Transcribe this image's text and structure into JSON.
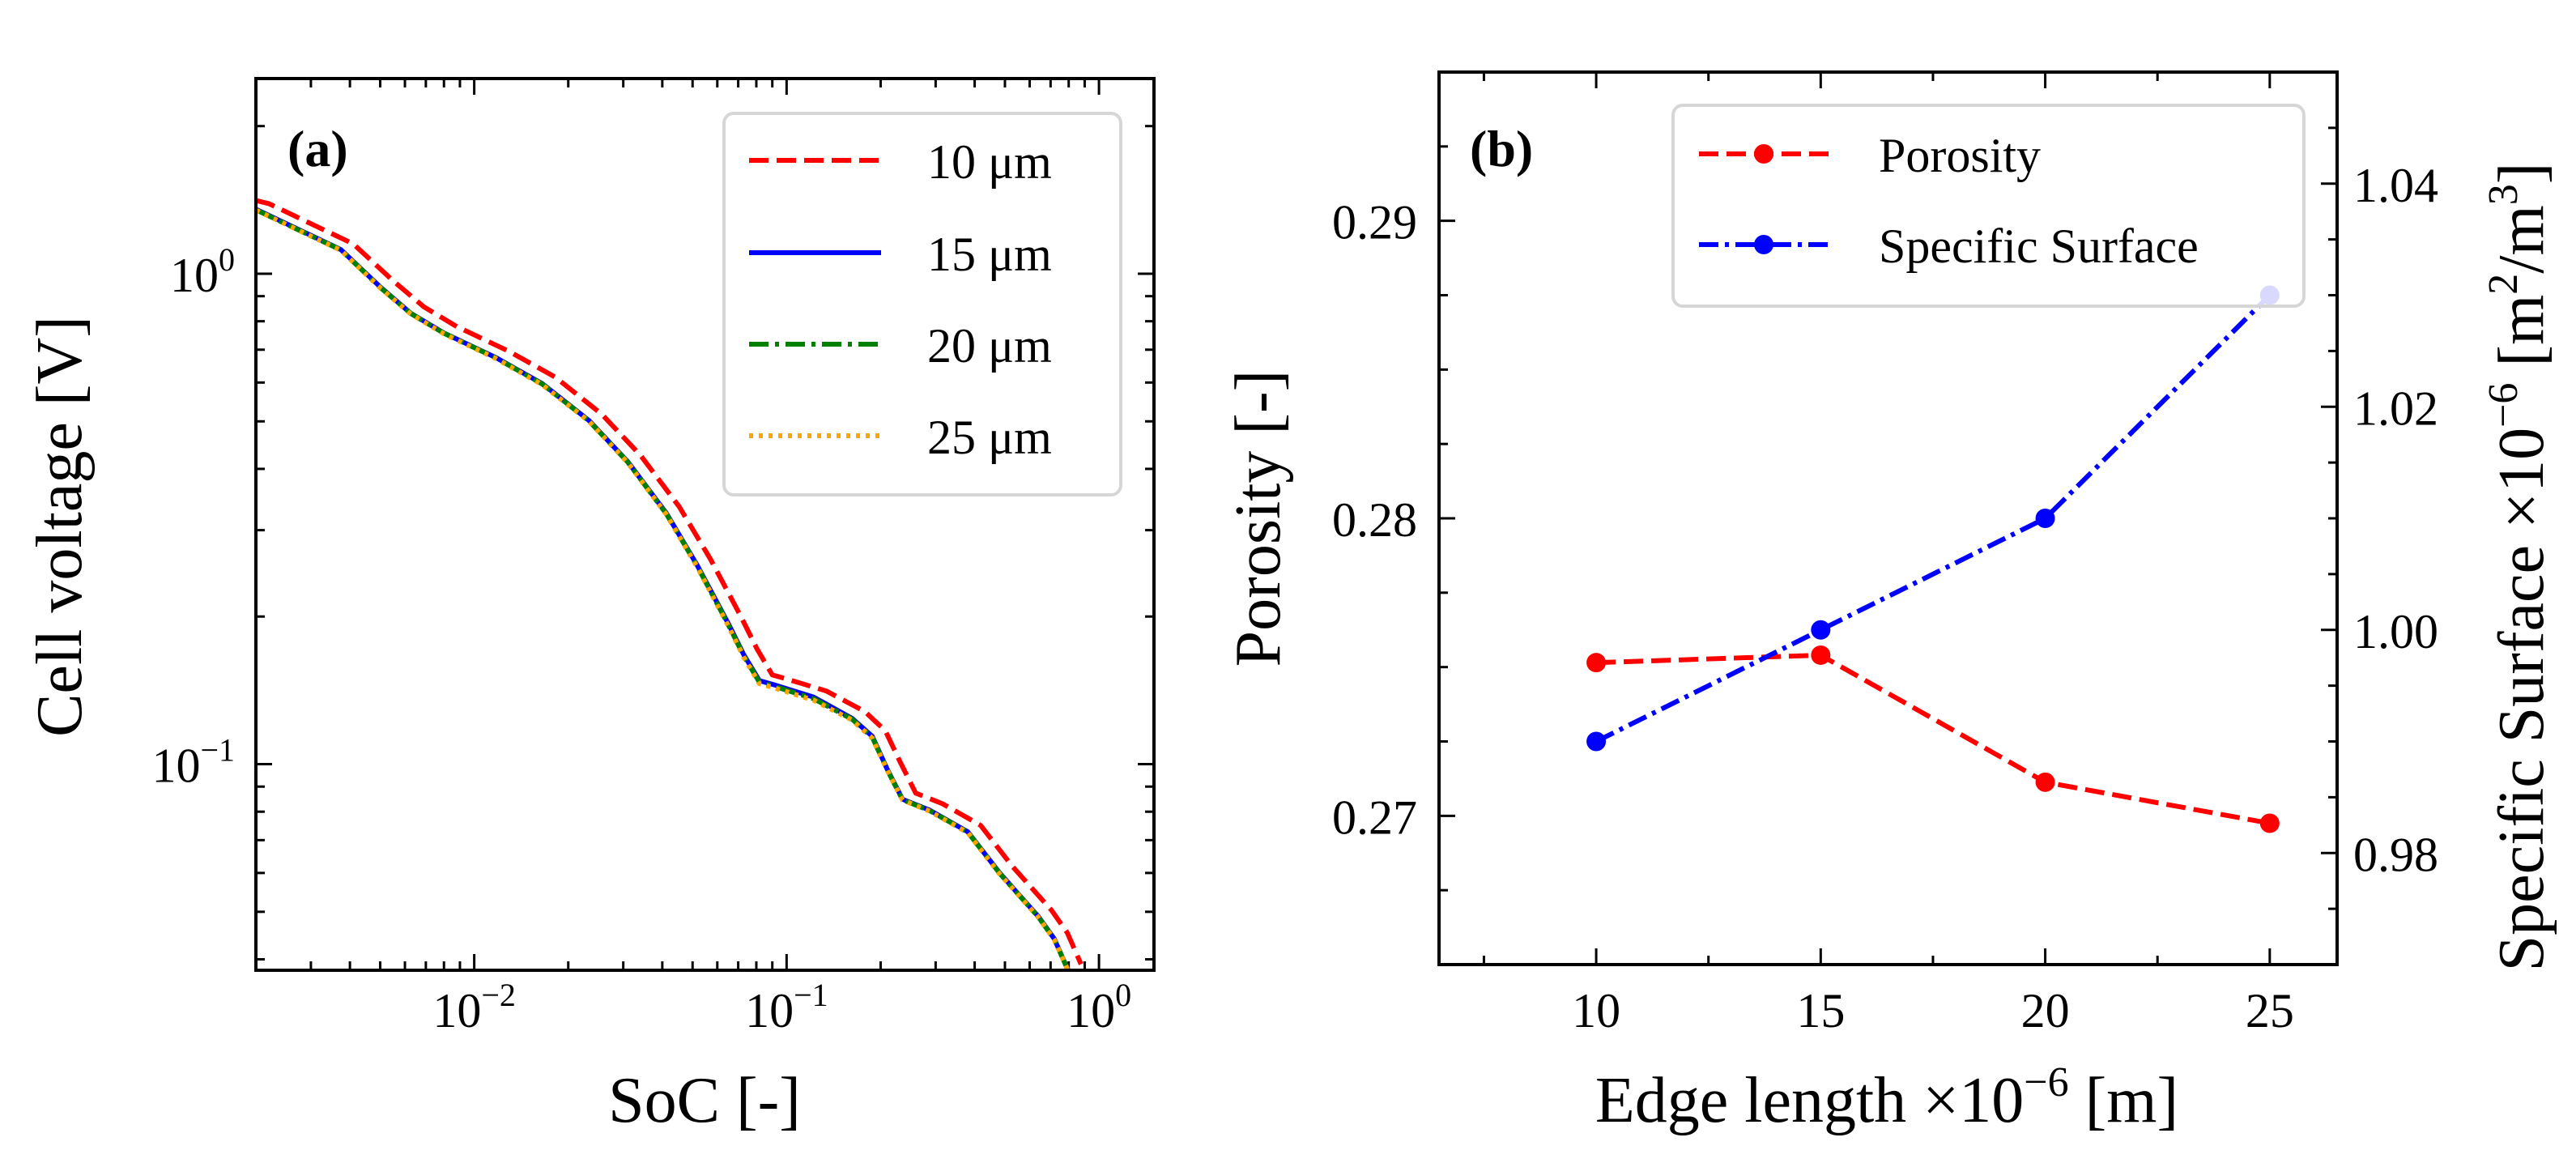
{
  "chart_data": [
    {
      "type": "line",
      "panel_label": "(a)",
      "xlabel": "SoC [-]",
      "ylabel": "Cell voltage [V]",
      "xscale": "log",
      "yscale": "log",
      "xlim": [
        0.002,
        1.5
      ],
      "ylim": [
        0.038,
        2.5
      ],
      "xticks": [
        {
          "value": 0.01,
          "base": "10",
          "exp": "−2"
        },
        {
          "value": 0.1,
          "base": "10",
          "exp": "−1"
        },
        {
          "value": 1,
          "base": "10",
          "exp": "0"
        }
      ],
      "yticks": [
        {
          "value": 0.1,
          "base": "10",
          "exp": "−1"
        },
        {
          "value": 1,
          "base": "10",
          "exp": "0"
        }
      ],
      "legend_position": "top-right",
      "series": [
        {
          "name": "10 μm",
          "color": "#ff0000",
          "style": "dashed",
          "x": [
            0.002,
            0.0022,
            0.0041,
            0.0055,
            0.0069,
            0.0088,
            0.0129,
            0.0182,
            0.0256,
            0.0341,
            0.0453,
            0.057,
            0.0717,
            0.0803,
            0.09,
            0.1008,
            0.134,
            0.178,
            0.207,
            0.231,
            0.259,
            0.316,
            0.418,
            0.528,
            0.594,
            0.704,
            0.792,
            0.876
          ],
          "y": [
            1.41,
            1.39,
            1.15,
            0.967,
            0.856,
            0.78,
            0.695,
            0.615,
            0.517,
            0.426,
            0.335,
            0.262,
            0.199,
            0.172,
            0.152,
            0.149,
            0.141,
            0.128,
            0.117,
            0.101,
            0.0873,
            0.083,
            0.075,
            0.0619,
            0.0569,
            0.0504,
            0.0453,
            0.0391
          ]
        },
        {
          "name": "15 μm",
          "color": "#0000ff",
          "style": "solid",
          "x": [
            0.002,
            0.00374,
            0.00501,
            0.00626,
            0.008,
            0.0117,
            0.0165,
            0.0233,
            0.031,
            0.0412,
            0.0518,
            0.0652,
            0.073,
            0.0818,
            0.0916,
            0.122,
            0.162,
            0.188,
            0.21,
            0.235,
            0.287,
            0.38,
            0.48,
            0.54,
            0.64,
            0.72,
            0.796
          ],
          "y": [
            1.354,
            1.12,
            0.939,
            0.831,
            0.757,
            0.675,
            0.597,
            0.502,
            0.414,
            0.325,
            0.254,
            0.193,
            0.167,
            0.148,
            0.145,
            0.137,
            0.124,
            0.114,
            0.0977,
            0.0848,
            0.0806,
            0.0728,
            0.0601,
            0.0552,
            0.0489,
            0.044,
            0.038
          ]
        },
        {
          "name": "20 μm",
          "color": "#008000",
          "style": "dashdot",
          "x": [
            0.002,
            0.00374,
            0.00501,
            0.00626,
            0.008,
            0.0117,
            0.0165,
            0.0233,
            0.031,
            0.0412,
            0.0518,
            0.0652,
            0.073,
            0.0818,
            0.0916,
            0.122,
            0.162,
            0.188,
            0.21,
            0.235,
            0.287,
            0.38,
            0.48,
            0.54,
            0.64,
            0.72,
            0.796
          ],
          "y": [
            1.35,
            1.118,
            0.937,
            0.83,
            0.756,
            0.674,
            0.596,
            0.501,
            0.413,
            0.324,
            0.253,
            0.192,
            0.166,
            0.147,
            0.144,
            0.136,
            0.1235,
            0.1135,
            0.0974,
            0.0846,
            0.0804,
            0.0727,
            0.06,
            0.0551,
            0.0488,
            0.0439,
            0.038
          ]
        },
        {
          "name": "25 μm",
          "color": "#ffa500",
          "style": "dotted",
          "x": [
            0.002,
            0.00374,
            0.00501,
            0.00626,
            0.008,
            0.0117,
            0.0165,
            0.0233,
            0.031,
            0.0412,
            0.0518,
            0.0652,
            0.073,
            0.0818,
            0.0916,
            0.122,
            0.162,
            0.188,
            0.21,
            0.235,
            0.287,
            0.38,
            0.48,
            0.54,
            0.64,
            0.72,
            0.796
          ],
          "y": [
            1.348,
            1.116,
            0.935,
            0.828,
            0.754,
            0.672,
            0.594,
            0.5,
            0.412,
            0.323,
            0.252,
            0.191,
            0.165,
            0.146,
            0.143,
            0.135,
            0.123,
            0.113,
            0.0972,
            0.0845,
            0.0802,
            0.0725,
            0.0598,
            0.055,
            0.0487,
            0.0438,
            0.038
          ]
        }
      ]
    },
    {
      "type": "line",
      "panel_label": "(b)",
      "xlabel": "Edge length ×10",
      "xlabel_exp": "−6",
      "xlabel_unit": " [m]",
      "ylabel": "Porosity [-]",
      "y2label": "Specific Surface ×10",
      "y2label_exp": "−6",
      "y2label_unit_a": " [m",
      "y2label_unit_b": "/m",
      "y2label_unit_c": "]",
      "y2label_sup2": "2",
      "y2label_sup3": "3",
      "xlim": [
        6.5,
        26.5
      ],
      "ylim": [
        0.265,
        0.295
      ],
      "y2lim": [
        0.97,
        1.05
      ],
      "xticks": [
        "10",
        "15",
        "20",
        "25"
      ],
      "yticks": [
        "0.27",
        "0.28",
        "0.29"
      ],
      "y2ticks": [
        "0.98",
        "1.00",
        "1.02",
        "1.04"
      ],
      "legend_position": "top-right",
      "x": [
        10,
        15,
        20,
        25
      ],
      "series": [
        {
          "name": "Porosity",
          "axis": "left",
          "color": "#ff0000",
          "style": "dashed",
          "values": [
            0.27515,
            0.2754,
            0.27113,
            0.26975
          ]
        },
        {
          "name": "Specific Surface",
          "axis": "right",
          "color": "#0000ff",
          "style": "dashdot",
          "values": [
            0.99,
            1.0,
            1.01,
            1.03
          ]
        }
      ]
    }
  ]
}
